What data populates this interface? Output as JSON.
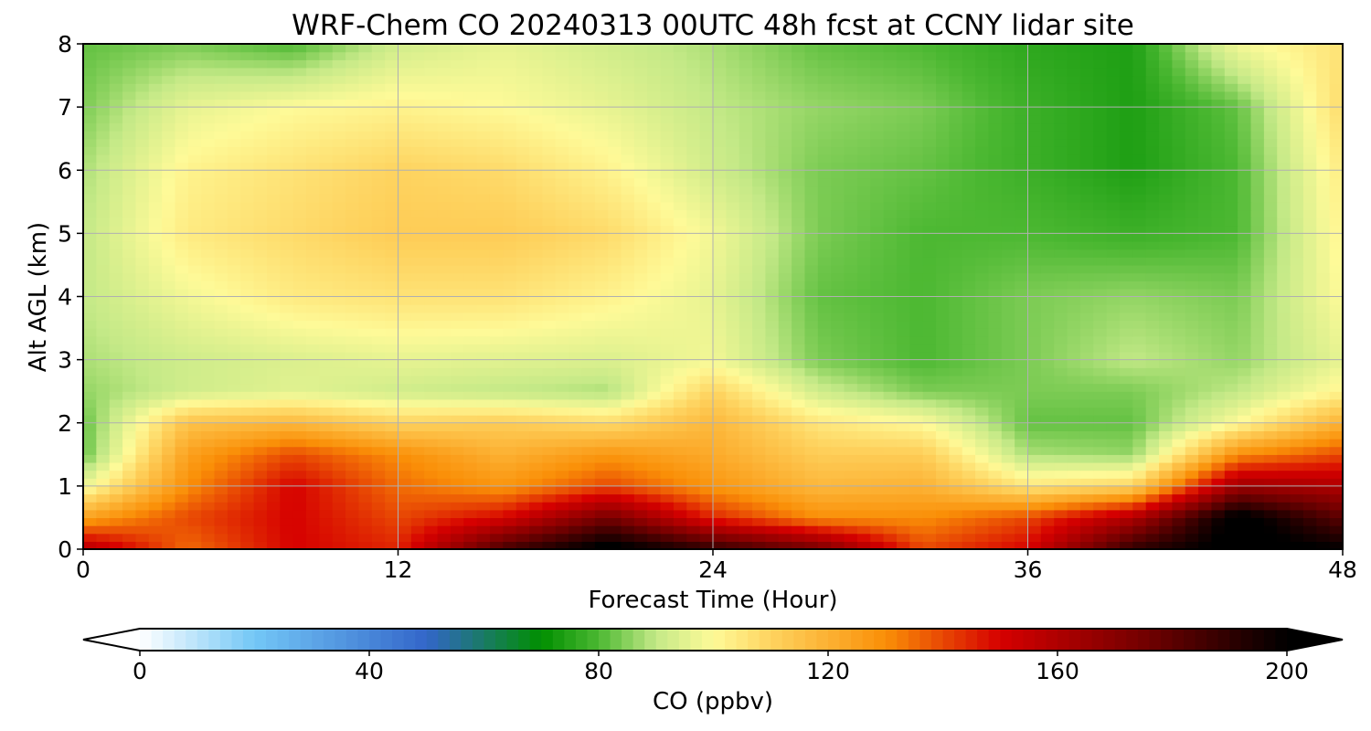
{
  "chart_data": {
    "type": "heatmap",
    "title": "WRF-Chem CO  20240313 00UTC 48h fcst at CCNY lidar site",
    "xlabel": "Forecast Time (Hour)",
    "ylabel": "Alt AGL (km)",
    "xlim": [
      0,
      48
    ],
    "ylim": [
      0,
      8
    ],
    "xticks": [
      0,
      12,
      24,
      36,
      48
    ],
    "yticks": [
      0,
      1,
      2,
      3,
      4,
      5,
      6,
      7,
      8
    ],
    "grid": true,
    "x": [
      0,
      4,
      8,
      12,
      16,
      20,
      24,
      28,
      32,
      36,
      40,
      44,
      48
    ],
    "y": [
      0,
      0.5,
      1,
      1.5,
      2,
      2.5,
      3,
      4,
      5,
      6,
      7,
      8
    ],
    "z": [
      [
        160,
        135,
        150,
        145,
        185,
        205,
        190,
        175,
        140,
        150,
        190,
        205,
        200
      ],
      [
        125,
        140,
        150,
        140,
        150,
        175,
        145,
        130,
        130,
        140,
        160,
        205,
        180
      ],
      [
        97,
        130,
        150,
        135,
        128,
        140,
        128,
        118,
        120,
        105,
        110,
        165,
        160
      ],
      [
        82,
        125,
        140,
        130,
        120,
        128,
        122,
        112,
        112,
        88,
        86,
        130,
        140
      ],
      [
        82,
        115,
        118,
        110,
        112,
        108,
        118,
        105,
        100,
        82,
        82,
        100,
        120
      ],
      [
        86,
        92,
        95,
        92,
        90,
        88,
        110,
        92,
        84,
        84,
        84,
        90,
        102
      ],
      [
        88,
        92,
        94,
        96,
        95,
        94,
        98,
        84,
        80,
        84,
        90,
        86,
        96
      ],
      [
        90,
        98,
        104,
        106,
        106,
        102,
        96,
        82,
        80,
        84,
        86,
        84,
        100
      ],
      [
        90,
        104,
        108,
        112,
        112,
        108,
        98,
        84,
        80,
        80,
        78,
        80,
        102
      ],
      [
        88,
        102,
        106,
        110,
        108,
        102,
        92,
        84,
        82,
        78,
        74,
        80,
        104
      ],
      [
        84,
        96,
        100,
        102,
        100,
        96,
        90,
        86,
        84,
        78,
        74,
        82,
        108
      ],
      [
        82,
        84,
        80,
        92,
        96,
        92,
        88,
        82,
        80,
        76,
        74,
        98,
        106
      ]
    ],
    "colorbar": {
      "label": "CO  (ppbv)",
      "min": 0,
      "max": 200,
      "ticks": [
        0,
        40,
        80,
        120,
        160,
        200
      ],
      "extend": "both",
      "colors": [
        {
          "v": 0,
          "c": "#ffffff"
        },
        {
          "v": 20,
          "c": "#73c7f6"
        },
        {
          "v": 50,
          "c": "#3366c9"
        },
        {
          "v": 70,
          "c": "#008f00"
        },
        {
          "v": 80,
          "c": "#4cb832"
        },
        {
          "v": 90,
          "c": "#c4e987"
        },
        {
          "v": 100,
          "c": "#fefa98"
        },
        {
          "v": 110,
          "c": "#fed35f"
        },
        {
          "v": 130,
          "c": "#fa8f07"
        },
        {
          "v": 150,
          "c": "#d60000"
        },
        {
          "v": 175,
          "c": "#730000"
        },
        {
          "v": 200,
          "c": "#000000"
        }
      ]
    }
  }
}
